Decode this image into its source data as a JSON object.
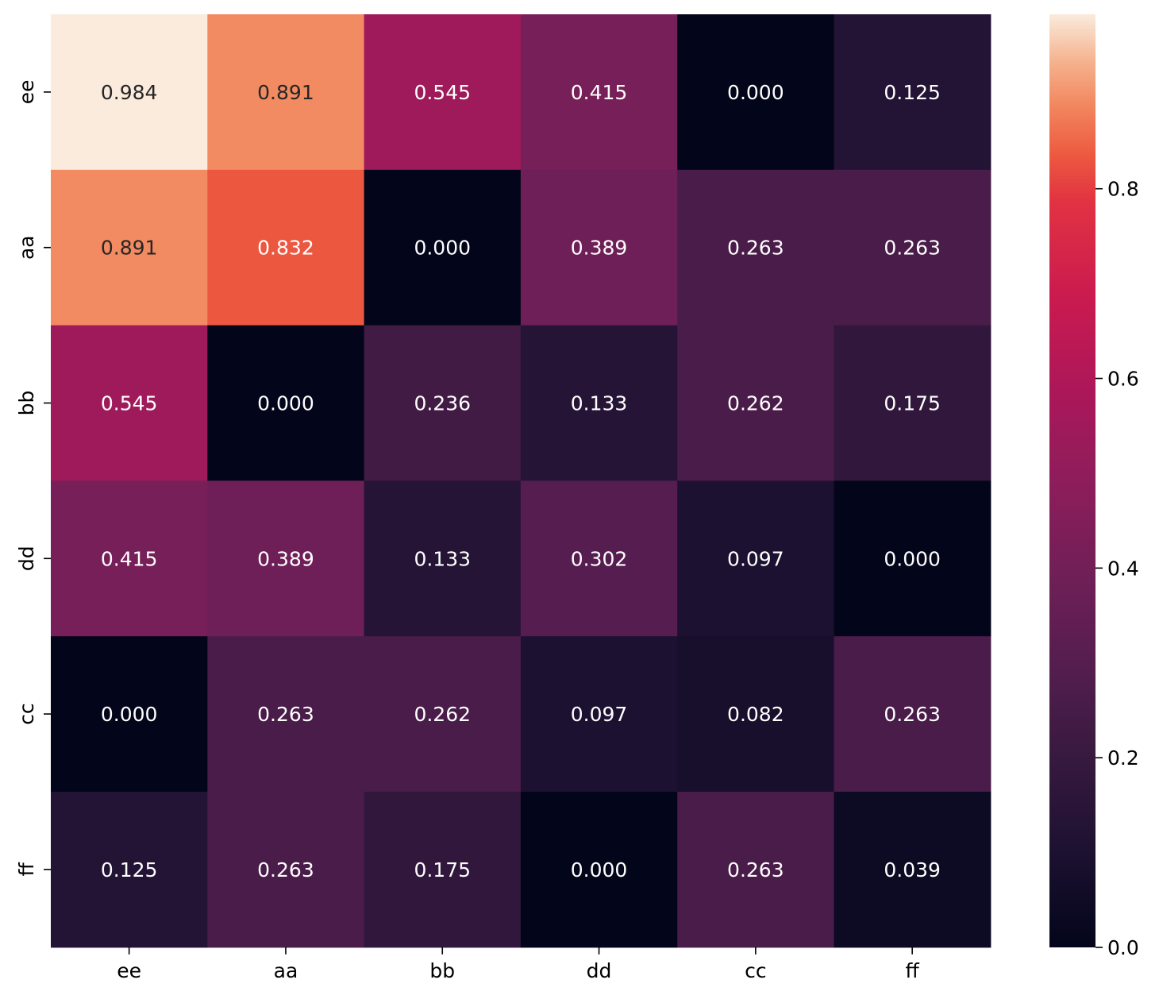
{
  "chart_data": {
    "type": "heatmap",
    "title": "",
    "xlabel": "",
    "ylabel": "",
    "x_categories": [
      "ee",
      "aa",
      "bb",
      "dd",
      "cc",
      "ff"
    ],
    "y_categories": [
      "ee",
      "aa",
      "bb",
      "dd",
      "cc",
      "ff"
    ],
    "values": [
      [
        "0.984",
        "0.891",
        "0.545",
        "0.415",
        "0.000",
        "0.125"
      ],
      [
        "0.891",
        "0.832",
        "0.000",
        "0.389",
        "0.263",
        "0.263"
      ],
      [
        "0.545",
        "0.000",
        "0.236",
        "0.133",
        "0.262",
        "0.175"
      ],
      [
        "0.415",
        "0.389",
        "0.133",
        "0.302",
        "0.097",
        "0.000"
      ],
      [
        "0.000",
        "0.263",
        "0.262",
        "0.097",
        "0.082",
        "0.263"
      ],
      [
        "0.125",
        "0.263",
        "0.175",
        "0.000",
        "0.263",
        "0.039"
      ]
    ],
    "colorbar": {
      "min": 0.0,
      "max": 0.984,
      "ticks": [
        "0.0",
        "0.2",
        "0.4",
        "0.6",
        "0.8"
      ],
      "colormap": "rocket"
    },
    "annotation_color_light": "#ffffff",
    "annotation_color_dark": "#262626",
    "grid": false,
    "legend": "colorbar-right"
  }
}
